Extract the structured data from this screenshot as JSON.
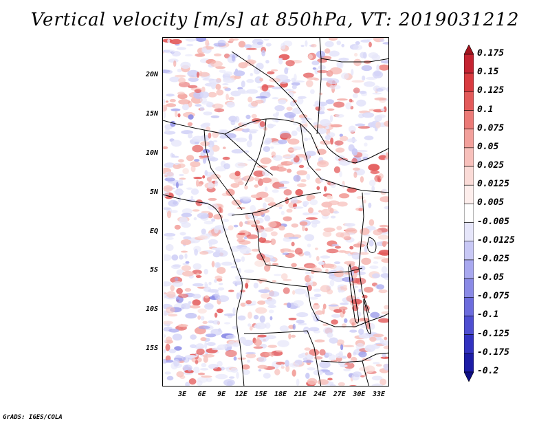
{
  "title": "Vertical velocity [m/s] at 850hPa, VT: 2019031212",
  "footer": "GrADS: IGES/COLA",
  "map": {
    "lat_labels": [
      "20N",
      "15N",
      "10N",
      "5N",
      "EQ",
      "5S",
      "10S",
      "15S"
    ],
    "lon_labels": [
      "3E",
      "6E",
      "9E",
      "12E",
      "15E",
      "18E",
      "21E",
      "24E",
      "27E",
      "30E",
      "33E"
    ]
  },
  "colorbar": {
    "labels": [
      "0.175",
      "0.15",
      "0.125",
      "0.1",
      "0.075",
      "0.05",
      "0.025",
      "0.0125",
      "0.005",
      "-0.005",
      "-0.0125",
      "-0.025",
      "-0.05",
      "-0.075",
      "-0.1",
      "-0.125",
      "-0.175",
      "-0.2"
    ],
    "colors": [
      "#a3141e",
      "#c42331",
      "#d93b40",
      "#e35a5a",
      "#eb7a77",
      "#f2a09b",
      "#f7c0bb",
      "#fadbd7",
      "#fdeeec",
      "#ffffff",
      "#e6e6fa",
      "#c8c8f5",
      "#a8a8ef",
      "#8a8ae6",
      "#6c6cdd",
      "#4e4ed1",
      "#3232c0",
      "#1c1ca6",
      "#0f0f85"
    ]
  }
}
